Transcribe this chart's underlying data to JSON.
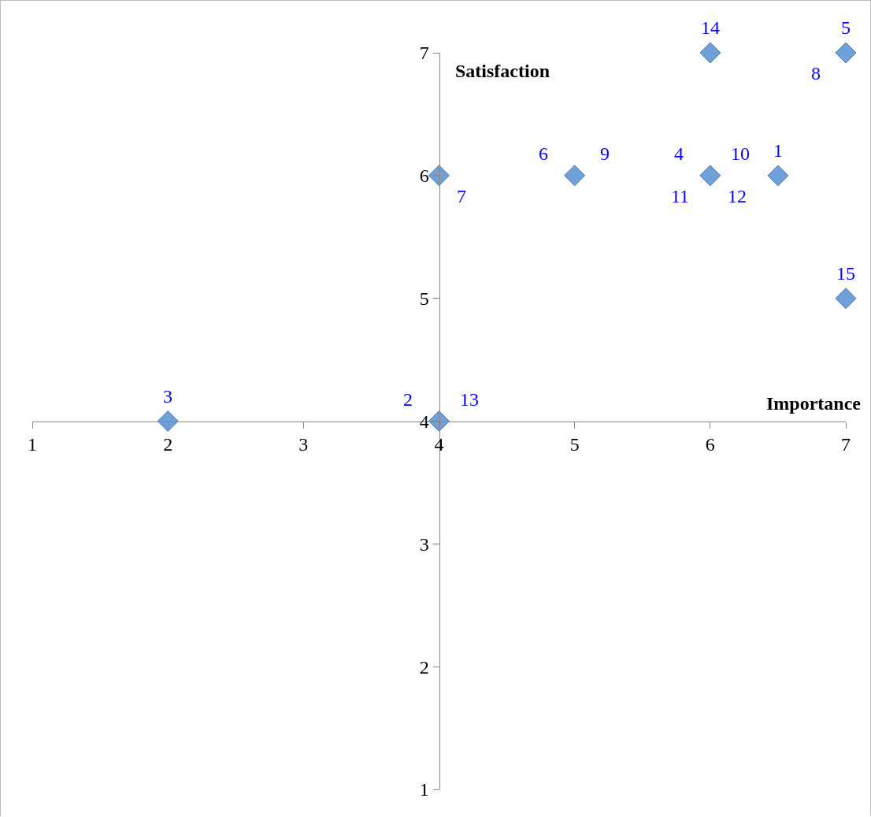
{
  "chart_data": {
    "type": "scatter",
    "xlabel": "Importance",
    "ylabel": "Satisfaction",
    "x": [
      6.5,
      4,
      2,
      6,
      7,
      5,
      4,
      6,
      7
    ],
    "values": [
      6,
      4,
      4,
      6,
      7,
      6,
      6,
      7,
      5
    ],
    "color": "#6fa0d8",
    "marker": "diamond",
    "grid": false,
    "xlim": [
      1,
      7
    ],
    "xticks": [
      1,
      2,
      3,
      4,
      5,
      6,
      7
    ],
    "ylim": [
      1,
      7
    ],
    "yticks": [
      1,
      2,
      3,
      4,
      5,
      6,
      7
    ],
    "annotations": [
      {
        "text": "1",
        "x": 6.5,
        "y": 6
      },
      {
        "text": "2",
        "x": 4,
        "y": 4
      },
      {
        "text": "3",
        "x": 2,
        "y": 4
      },
      {
        "text": "4",
        "x": 6,
        "y": 6
      },
      {
        "text": "5",
        "x": 7,
        "y": 7
      },
      {
        "text": "6",
        "x": 5,
        "y": 6
      },
      {
        "text": "7",
        "x": 4,
        "y": 6
      },
      {
        "text": "8",
        "x": 7,
        "y": 7
      },
      {
        "text": "9",
        "x": 5,
        "y": 6
      },
      {
        "text": "10",
        "x": 6,
        "y": 6
      },
      {
        "text": "11",
        "x": 6,
        "y": 6
      },
      {
        "text": "12",
        "x": 6,
        "y": 6
      },
      {
        "text": "13",
        "x": 4,
        "y": 4
      },
      {
        "text": "14",
        "x": 6,
        "y": 7
      },
      {
        "text": "15",
        "x": 7,
        "y": 5
      }
    ]
  }
}
